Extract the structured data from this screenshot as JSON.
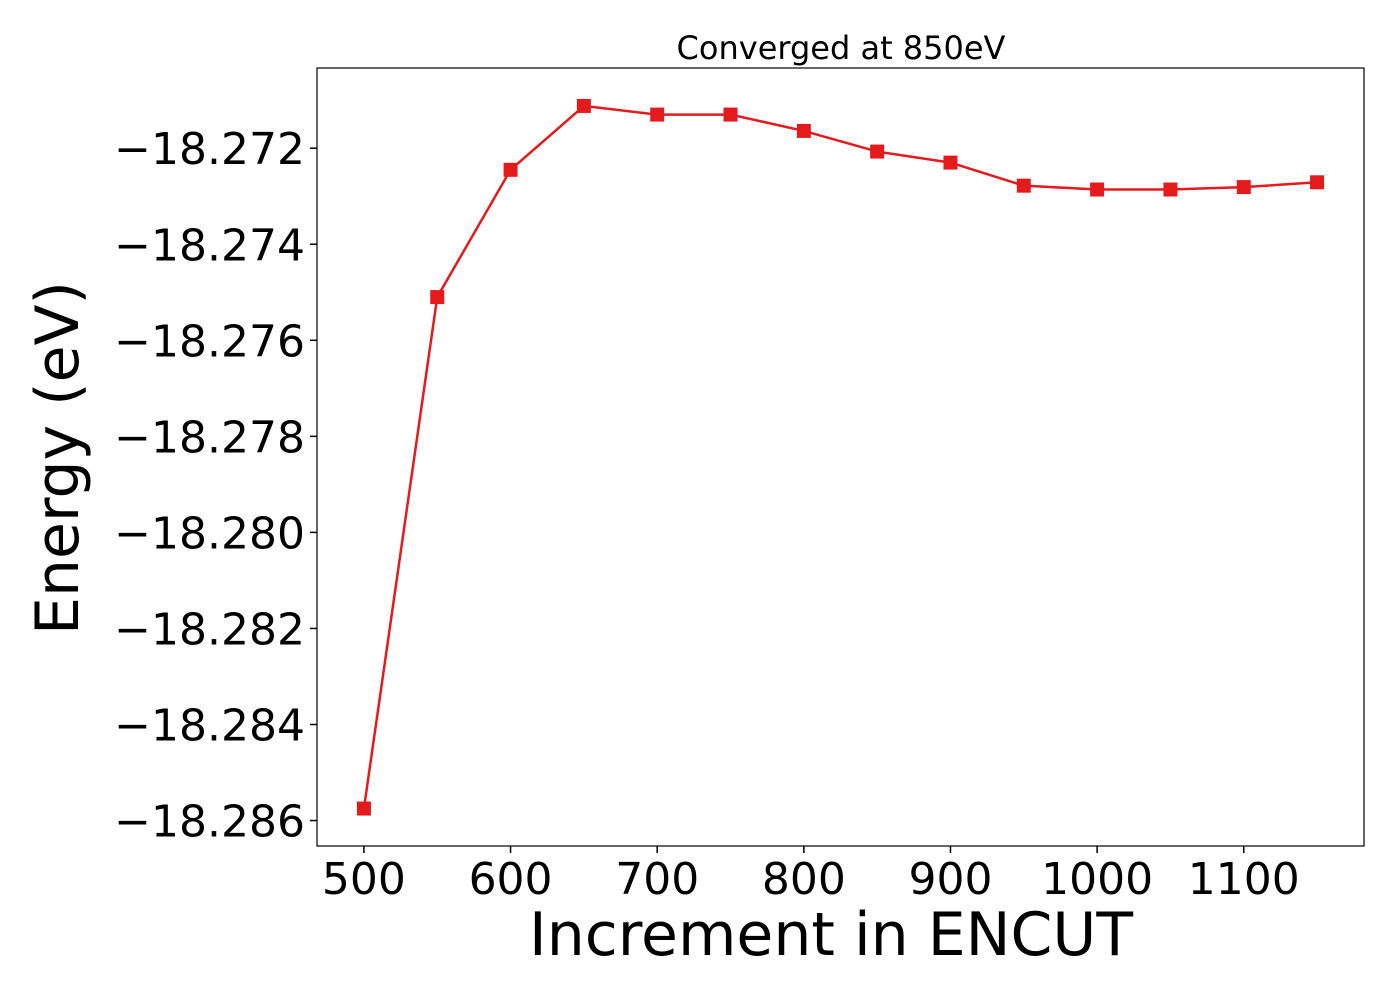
{
  "chart_data": {
    "type": "line",
    "title": "Converged at 850eV",
    "xlabel": "Increment in ENCUT",
    "ylabel": "Energy (eV)",
    "x": [
      500,
      550,
      600,
      650,
      700,
      750,
      800,
      850,
      900,
      950,
      1000,
      1050,
      1100,
      1150
    ],
    "series": [
      {
        "color": "#e41a1c",
        "marker": "square",
        "values": [
          -18.28575,
          -18.2751,
          -18.27245,
          -18.27112,
          -18.2713,
          -18.2713,
          -18.27164,
          -18.27207,
          -18.2723,
          -18.27278,
          -18.27286,
          -18.27286,
          -18.27281,
          -18.27271
        ]
      }
    ],
    "xlim": [
      468,
      1182
    ],
    "ylim": [
      -18.28653,
      -18.27033
    ],
    "xticks": [
      500,
      600,
      700,
      800,
      900,
      1000,
      1100
    ],
    "xtick_labels": [
      "500",
      "600",
      "700",
      "800",
      "900",
      "1000",
      "1100"
    ],
    "yticks": [
      -18.272,
      -18.274,
      -18.276,
      -18.278,
      -18.28,
      -18.282,
      -18.284,
      -18.286
    ],
    "ytick_labels": [
      "−18.272",
      "−18.274",
      "−18.276",
      "−18.278",
      "−18.280",
      "−18.282",
      "−18.284",
      "−18.286"
    ],
    "grid": false,
    "legend": "none"
  }
}
